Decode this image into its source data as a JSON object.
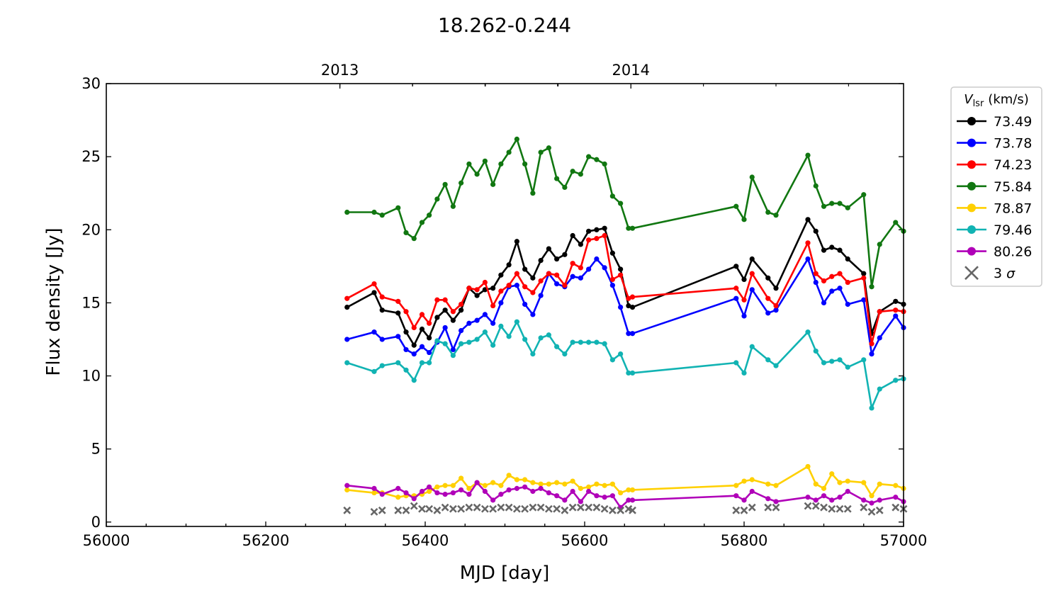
{
  "chart_data": {
    "type": "line",
    "title": "18.262-0.244",
    "xlabel": "MJD [day]",
    "ylabel": "Flux density [Jy]",
    "xlim": [
      56000,
      57000
    ],
    "ylim": [
      -0.3,
      30
    ],
    "xticks": [
      56000,
      56200,
      56400,
      56600,
      56800,
      57000
    ],
    "yticks": [
      0,
      5,
      10,
      15,
      20,
      25,
      30
    ],
    "top_axis": {
      "labels": [
        {
          "label": "2013",
          "mjd": 56293
        },
        {
          "label": "2014",
          "mjd": 56658
        }
      ]
    },
    "legend": {
      "title_symbol": "V",
      "title_sub": "lsr",
      "title_unit": "(km/s)",
      "placement": "outside-right"
    },
    "series": [
      {
        "name": "73.49",
        "color": "#000000",
        "x": [
          56302,
          56336,
          56346,
          56366,
          56376,
          56386,
          56396,
          56405,
          56415,
          56425,
          56435,
          56445,
          56455,
          56465,
          56475,
          56485,
          56495,
          56505,
          56515,
          56525,
          56535,
          56545,
          56555,
          56565,
          56575,
          56585,
          56595,
          56605,
          56615,
          56625,
          56635,
          56645,
          56655,
          56660,
          56790,
          56800,
          56810,
          56830,
          56840,
          56880,
          56890,
          56900,
          56910,
          56920,
          56930,
          56950,
          56960,
          56970,
          56990,
          57000
        ],
        "y": [
          14.7,
          15.7,
          14.5,
          14.3,
          13.0,
          12.1,
          13.2,
          12.6,
          14.0,
          14.5,
          13.8,
          14.5,
          16.0,
          15.5,
          15.9,
          16.0,
          16.9,
          17.6,
          19.2,
          17.3,
          16.7,
          17.9,
          18.7,
          18.0,
          18.3,
          19.6,
          19.0,
          19.9,
          20.0,
          20.1,
          18.4,
          17.3,
          14.8,
          14.7,
          17.5,
          16.6,
          18.0,
          16.7,
          16.0,
          20.7,
          19.9,
          18.6,
          18.8,
          18.6,
          18.0,
          17.0,
          12.9,
          14.4,
          15.1,
          14.9
        ]
      },
      {
        "name": "73.78",
        "color": "#0000ff",
        "x": [
          56302,
          56336,
          56346,
          56366,
          56376,
          56386,
          56396,
          56405,
          56415,
          56425,
          56435,
          56445,
          56455,
          56465,
          56475,
          56485,
          56495,
          56505,
          56515,
          56525,
          56535,
          56545,
          56555,
          56565,
          56575,
          56585,
          56595,
          56605,
          56615,
          56625,
          56635,
          56645,
          56655,
          56660,
          56790,
          56800,
          56810,
          56830,
          56840,
          56880,
          56890,
          56900,
          56910,
          56920,
          56930,
          56950,
          56960,
          56970,
          56990,
          57000
        ],
        "y": [
          12.5,
          13.0,
          12.5,
          12.7,
          11.8,
          11.5,
          12.0,
          11.6,
          12.3,
          13.3,
          11.8,
          13.1,
          13.6,
          13.8,
          14.2,
          13.6,
          15.0,
          16.1,
          16.2,
          14.9,
          14.2,
          15.5,
          17.0,
          16.3,
          16.1,
          16.8,
          16.7,
          17.3,
          18.0,
          17.4,
          16.2,
          14.7,
          12.9,
          12.9,
          15.3,
          14.1,
          15.9,
          14.3,
          14.5,
          18.0,
          16.4,
          15.0,
          15.8,
          16.0,
          14.9,
          15.2,
          11.5,
          12.6,
          14.1,
          13.3
        ]
      },
      {
        "name": "74.23",
        "color": "#ff0000",
        "x": [
          56302,
          56336,
          56346,
          56366,
          56376,
          56386,
          56396,
          56405,
          56415,
          56425,
          56435,
          56445,
          56455,
          56465,
          56475,
          56485,
          56495,
          56505,
          56515,
          56525,
          56535,
          56545,
          56555,
          56565,
          56575,
          56585,
          56595,
          56605,
          56615,
          56625,
          56635,
          56645,
          56655,
          56660,
          56790,
          56800,
          56810,
          56830,
          56840,
          56880,
          56890,
          56900,
          56910,
          56920,
          56930,
          56950,
          56960,
          56970,
          56990,
          57000
        ],
        "y": [
          15.3,
          16.3,
          15.4,
          15.1,
          14.4,
          13.3,
          14.2,
          13.6,
          15.2,
          15.2,
          14.4,
          14.9,
          16.0,
          15.9,
          16.4,
          14.8,
          15.8,
          16.2,
          17.0,
          16.1,
          15.7,
          16.5,
          17.0,
          16.9,
          16.2,
          17.7,
          17.4,
          19.3,
          19.4,
          19.6,
          16.6,
          16.9,
          15.3,
          15.4,
          16.0,
          15.2,
          17.0,
          15.3,
          14.8,
          19.1,
          17.0,
          16.5,
          16.8,
          17.0,
          16.4,
          16.7,
          12.2,
          14.4,
          14.5,
          14.4
        ]
      },
      {
        "name": "75.84",
        "color": "#117711",
        "x": [
          56302,
          56336,
          56346,
          56366,
          56376,
          56386,
          56396,
          56405,
          56415,
          56425,
          56435,
          56445,
          56455,
          56465,
          56475,
          56485,
          56495,
          56505,
          56515,
          56525,
          56535,
          56545,
          56555,
          56565,
          56575,
          56585,
          56595,
          56605,
          56615,
          56625,
          56635,
          56645,
          56655,
          56660,
          56790,
          56800,
          56810,
          56830,
          56840,
          56880,
          56890,
          56900,
          56910,
          56920,
          56930,
          56950,
          56960,
          56970,
          56990,
          57000
        ],
        "y": [
          21.2,
          21.2,
          21.0,
          21.5,
          19.8,
          19.4,
          20.5,
          21.0,
          22.1,
          23.1,
          21.6,
          23.2,
          24.5,
          23.8,
          24.7,
          23.1,
          24.5,
          25.3,
          26.2,
          24.5,
          22.5,
          25.3,
          25.6,
          23.5,
          22.9,
          24.0,
          23.8,
          25.0,
          24.8,
          24.5,
          22.3,
          21.8,
          20.1,
          20.1,
          21.6,
          20.7,
          23.6,
          21.2,
          21.0,
          25.1,
          23.0,
          21.6,
          21.8,
          21.8,
          21.5,
          22.4,
          16.1,
          19.0,
          20.5,
          19.9
        ]
      },
      {
        "name": "78.87",
        "color": "#ffd000",
        "x": [
          56302,
          56336,
          56346,
          56366,
          56376,
          56386,
          56396,
          56405,
          56415,
          56425,
          56435,
          56445,
          56455,
          56465,
          56475,
          56485,
          56495,
          56505,
          56515,
          56525,
          56535,
          56545,
          56555,
          56565,
          56575,
          56585,
          56595,
          56605,
          56615,
          56625,
          56635,
          56645,
          56655,
          56660,
          56790,
          56800,
          56810,
          56830,
          56840,
          56880,
          56890,
          56900,
          56910,
          56920,
          56930,
          56950,
          56960,
          56970,
          56990,
          57000
        ],
        "y": [
          2.2,
          2.0,
          2.0,
          1.7,
          1.8,
          1.8,
          1.9,
          2.1,
          2.4,
          2.5,
          2.5,
          3.0,
          2.3,
          2.7,
          2.5,
          2.7,
          2.5,
          3.2,
          2.9,
          2.9,
          2.7,
          2.6,
          2.6,
          2.7,
          2.6,
          2.8,
          2.3,
          2.4,
          2.6,
          2.5,
          2.6,
          2.0,
          2.2,
          2.2,
          2.5,
          2.8,
          2.9,
          2.6,
          2.5,
          3.8,
          2.6,
          2.3,
          3.3,
          2.7,
          2.8,
          2.7,
          1.8,
          2.6,
          2.5,
          2.3
        ]
      },
      {
        "name": "79.46",
        "color": "#11b3b3",
        "x": [
          56302,
          56336,
          56346,
          56366,
          56376,
          56386,
          56396,
          56405,
          56415,
          56425,
          56435,
          56445,
          56455,
          56465,
          56475,
          56485,
          56495,
          56505,
          56515,
          56525,
          56535,
          56545,
          56555,
          56565,
          56575,
          56585,
          56595,
          56605,
          56615,
          56625,
          56635,
          56645,
          56655,
          56660,
          56790,
          56800,
          56810,
          56830,
          56840,
          56880,
          56890,
          56900,
          56910,
          56920,
          56930,
          56950,
          56960,
          56970,
          56990,
          57000
        ],
        "y": [
          10.9,
          10.3,
          10.7,
          10.9,
          10.4,
          9.7,
          10.9,
          10.9,
          12.4,
          12.2,
          11.4,
          12.2,
          12.3,
          12.5,
          13.0,
          12.1,
          13.4,
          12.7,
          13.7,
          12.5,
          11.5,
          12.6,
          12.8,
          12.0,
          11.5,
          12.3,
          12.3,
          12.3,
          12.3,
          12.2,
          11.1,
          11.5,
          10.2,
          10.2,
          10.9,
          10.2,
          12.0,
          11.1,
          10.7,
          13.0,
          11.7,
          10.9,
          11.0,
          11.1,
          10.6,
          11.1,
          7.8,
          9.1,
          9.7,
          9.8
        ]
      },
      {
        "name": "80.26",
        "color": "#b000b8",
        "x": [
          56302,
          56336,
          56346,
          56366,
          56376,
          56386,
          56396,
          56405,
          56415,
          56425,
          56435,
          56445,
          56455,
          56465,
          56475,
          56485,
          56495,
          56505,
          56515,
          56525,
          56535,
          56545,
          56555,
          56565,
          56575,
          56585,
          56595,
          56605,
          56615,
          56625,
          56635,
          56645,
          56655,
          56660,
          56790,
          56800,
          56810,
          56830,
          56840,
          56880,
          56890,
          56900,
          56910,
          56920,
          56930,
          56950,
          56960,
          56970,
          56990,
          57000
        ],
        "y": [
          2.5,
          2.3,
          1.9,
          2.3,
          2.0,
          1.6,
          2.1,
          2.4,
          2.0,
          1.9,
          2.0,
          2.2,
          1.9,
          2.7,
          2.1,
          1.5,
          1.9,
          2.2,
          2.3,
          2.4,
          2.1,
          2.3,
          2.0,
          1.8,
          1.5,
          2.1,
          1.4,
          2.1,
          1.8,
          1.7,
          1.8,
          1.0,
          1.5,
          1.5,
          1.8,
          1.5,
          2.1,
          1.6,
          1.4,
          1.7,
          1.5,
          1.8,
          1.5,
          1.7,
          2.1,
          1.5,
          1.3,
          1.5,
          1.7,
          1.4
        ]
      }
    ],
    "threshold": {
      "name": "3 σ",
      "color": "#666666",
      "marker": "x",
      "x": [
        56302,
        56336,
        56346,
        56366,
        56376,
        56386,
        56396,
        56405,
        56415,
        56425,
        56435,
        56445,
        56455,
        56465,
        56475,
        56485,
        56495,
        56505,
        56515,
        56525,
        56535,
        56545,
        56555,
        56565,
        56575,
        56585,
        56595,
        56605,
        56615,
        56625,
        56635,
        56645,
        56655,
        56660,
        56790,
        56800,
        56810,
        56830,
        56840,
        56880,
        56890,
        56900,
        56910,
        56920,
        56930,
        56950,
        56960,
        56970,
        56990,
        57000
      ],
      "y": [
        0.8,
        0.7,
        0.8,
        0.8,
        0.8,
        1.1,
        0.9,
        0.9,
        0.8,
        1.0,
        0.9,
        0.9,
        1.0,
        1.0,
        0.9,
        0.9,
        1.0,
        1.0,
        0.9,
        0.9,
        1.0,
        1.0,
        0.9,
        0.9,
        0.8,
        1.0,
        1.0,
        1.0,
        1.0,
        0.9,
        0.8,
        0.8,
        0.9,
        0.8,
        0.8,
        0.8,
        1.0,
        1.0,
        1.0,
        1.1,
        1.1,
        1.0,
        0.9,
        0.9,
        0.9,
        1.0,
        0.7,
        0.8,
        1.0,
        0.9
      ]
    }
  }
}
